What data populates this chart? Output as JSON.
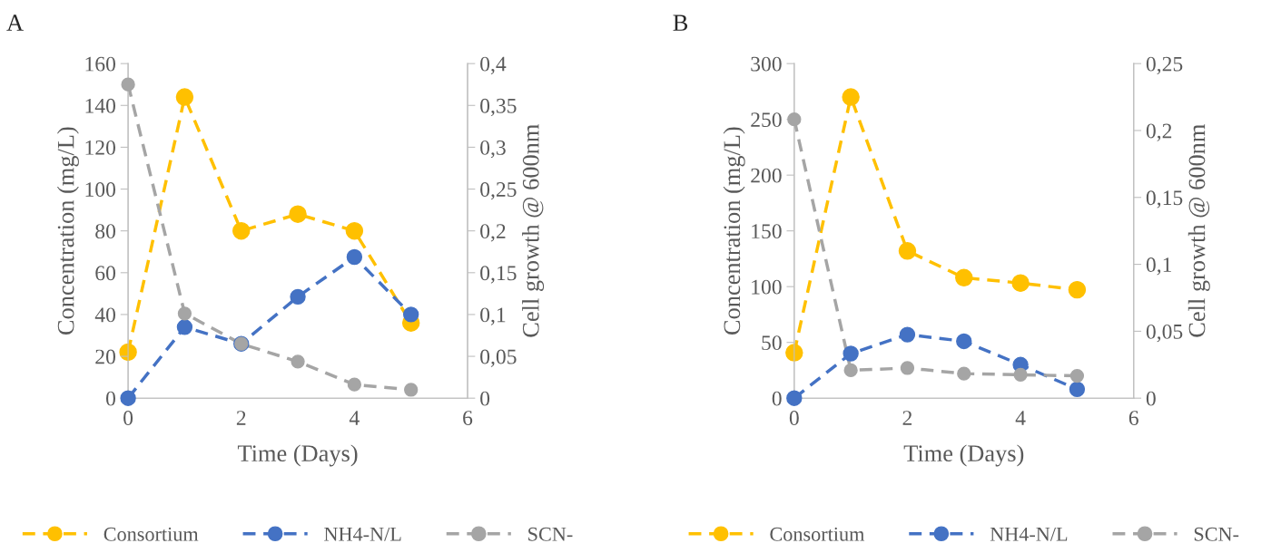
{
  "chart_data": [
    {
      "type": "line",
      "title": "A",
      "xlabel": "Time (Days)",
      "ylabel": "Concentration (mg/L)",
      "y2label": "Cell growth @ 600nm",
      "x": [
        0,
        1,
        2,
        3,
        4,
        5
      ],
      "xlim": [
        0,
        6
      ],
      "xticks": [
        0,
        2,
        4,
        6
      ],
      "ylim": [
        0,
        160
      ],
      "yticks": [
        0,
        20,
        40,
        60,
        80,
        100,
        120,
        140,
        160
      ],
      "y2lim": [
        0,
        0.4
      ],
      "y2ticks": [
        {
          "value": 0,
          "label": "0"
        },
        {
          "value": 0.05,
          "label": "0,05"
        },
        {
          "value": 0.1,
          "label": "0,1"
        },
        {
          "value": 0.15,
          "label": "0,15"
        },
        {
          "value": 0.2,
          "label": "0,2"
        },
        {
          "value": 0.25,
          "label": "0,25"
        },
        {
          "value": 0.3,
          "label": "0,3"
        },
        {
          "value": 0.35,
          "label": "0,35"
        },
        {
          "value": 0.4,
          "label": "0,4"
        }
      ],
      "marker": "circle",
      "line_style": "dashed",
      "legend": "bottom",
      "grid": false,
      "series": [
        {
          "name": "Consortium",
          "color": "#ffc000",
          "axis": "y2",
          "values": [
            0.055,
            0.36,
            0.2,
            0.22,
            0.2,
            0.09
          ]
        },
        {
          "name": "NH4-N/L",
          "color": "#4472c4",
          "values": [
            0,
            34,
            26,
            48.5,
            67.5,
            40
          ]
        },
        {
          "name": "SCN-",
          "color": "#a5a5a5",
          "values": [
            150,
            40.5,
            26,
            17.5,
            6.5,
            4
          ]
        }
      ]
    },
    {
      "type": "line",
      "title": "B",
      "xlabel": "Time (Days)",
      "ylabel": "Concentration (mg/L)",
      "y2label": "Cell growth @ 600nm",
      "x": [
        0,
        1,
        2,
        3,
        4,
        5
      ],
      "xlim": [
        0,
        6
      ],
      "xticks": [
        0,
        2,
        4,
        6
      ],
      "ylim": [
        0,
        300
      ],
      "yticks": [
        0,
        50,
        100,
        150,
        200,
        250,
        300
      ],
      "y2lim": [
        0,
        0.25
      ],
      "y2ticks": [
        {
          "value": 0,
          "label": "0"
        },
        {
          "value": 0.05,
          "label": "0,05"
        },
        {
          "value": 0.1,
          "label": "0,1"
        },
        {
          "value": 0.15,
          "label": "0,15"
        },
        {
          "value": 0.2,
          "label": "0,2"
        },
        {
          "value": 0.25,
          "label": "0,25"
        }
      ],
      "marker": "circle",
      "line_style": "dashed",
      "legend": "bottom",
      "grid": false,
      "series": [
        {
          "name": "Consortium",
          "color": "#ffc000",
          "axis": "y2",
          "values": [
            0.034,
            0.225,
            0.11,
            0.09,
            0.086,
            0.081
          ]
        },
        {
          "name": "NH4-N/L",
          "color": "#4472c4",
          "values": [
            0,
            40,
            57,
            51,
            30,
            8
          ]
        },
        {
          "name": "SCN-",
          "color": "#a5a5a5",
          "values": [
            250,
            25,
            27,
            22,
            21,
            20
          ]
        }
      ]
    }
  ]
}
